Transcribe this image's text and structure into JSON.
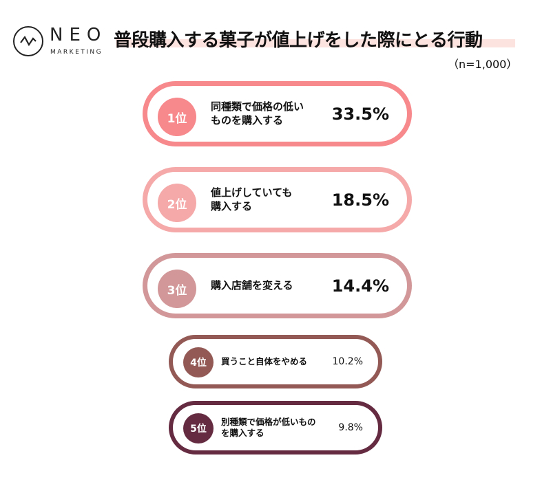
{
  "logo": {
    "name": "NEO",
    "sub": "MARKETING"
  },
  "title": "普段購入する菓子が値上げをした際にとる行動",
  "sample": "（n=1,000）",
  "chart_data": {
    "type": "bar",
    "title": "普段購入する菓子が値上げをした際にとる行動",
    "note": "（n=1,000）",
    "unit": "%",
    "items": [
      {
        "rank": "1位",
        "label": "同種類で価格の低いものを購入する",
        "value": 33.5,
        "value_label": "33.5%",
        "color": "#f7888c"
      },
      {
        "rank": "2位",
        "label": "値上げしていても購入する",
        "value": 18.5,
        "value_label": "18.5%",
        "color": "#f5a9a9"
      },
      {
        "rank": "3位",
        "label": "購入店舗を変える",
        "value": 14.4,
        "value_label": "14.4%",
        "color": "#d29899"
      },
      {
        "rank": "4位",
        "label": "買うこと自体をやめる",
        "value": 10.2,
        "value_label": "10.2%",
        "color": "#935a55"
      },
      {
        "rank": "5位",
        "label": "別種類で価格が低いものを購入する",
        "value": 9.8,
        "value_label": "9.8%",
        "color": "#652b41"
      }
    ]
  }
}
